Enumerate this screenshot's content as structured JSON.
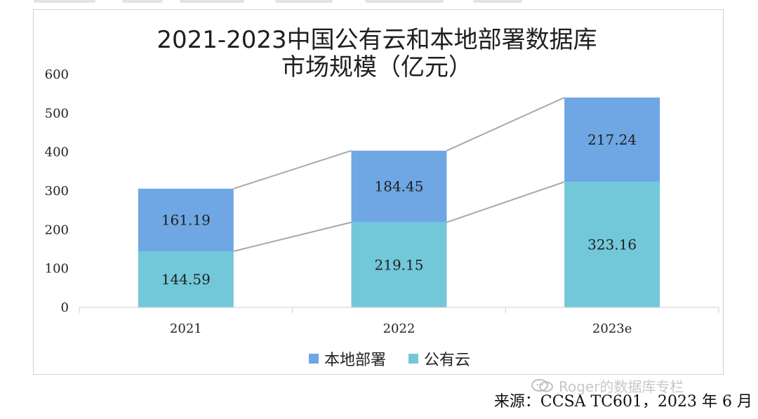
{
  "chart_data": {
    "type": "bar",
    "stacked": true,
    "title": "2021-2023中国公有云和本地部署数据库市场规模（亿元）",
    "title_lines": [
      "2021-2023中国公有云和本地部署数据库",
      "市场规模（亿元）"
    ],
    "categories": [
      "2021",
      "2022",
      "2023e"
    ],
    "series": [
      {
        "name": "公有云",
        "values": [
          144.59,
          219.15,
          323.16
        ],
        "color": "#72C8D8"
      },
      {
        "name": "本地部署",
        "values": [
          161.19,
          184.45,
          217.24
        ],
        "color": "#6EA7E3"
      }
    ],
    "value_labels": [
      [
        "144.59",
        "219.15",
        "323.16"
      ],
      [
        "161.19",
        "184.45",
        "217.24"
      ]
    ],
    "y_ticks": [
      0,
      100,
      200,
      300,
      400,
      500,
      600
    ],
    "ylim": [
      0,
      600
    ],
    "xlabel": "",
    "ylabel": "",
    "legend": [
      "本地部署",
      "公有云"
    ],
    "legend_position": "bottom-center",
    "connector_lines": true
  },
  "source": {
    "text": "来源：CCSA TC601，2023 年 6 月"
  },
  "watermark": {
    "text": "Roger的数据库专栏"
  }
}
